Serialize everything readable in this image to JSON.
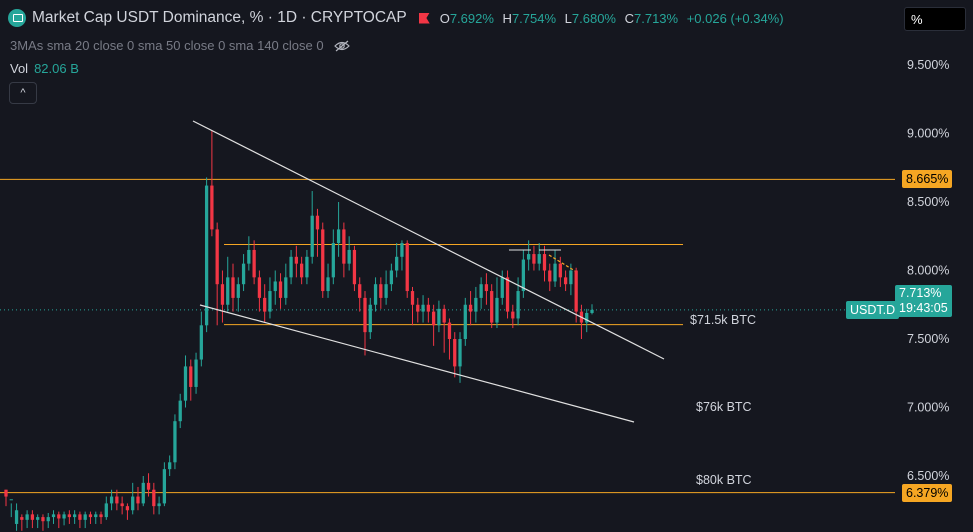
{
  "header": {
    "title": "Market Cap USDT Dominance, % · 1D · CRYPTOCAP",
    "ohlc": {
      "o_label": "O",
      "o_value": "7.692%",
      "h_label": "H",
      "h_value": "7.754%",
      "l_label": "L",
      "l_value": "7.680%",
      "c_label": "C",
      "c_value": "7.713%",
      "change": "+0.026 (+0.34%)"
    }
  },
  "indicator": {
    "label": "3MAs sma 20 close 0 sma 50 close 0 sma 140 close 0"
  },
  "volume": {
    "label": "Vol",
    "value": "82.06 B"
  },
  "unit_button": "%",
  "collapse_icon": "^",
  "colors": {
    "bg": "#15171f",
    "up": "#26a69a",
    "down": "#f23645",
    "level": "#f5a623",
    "trendline": "#e0e0e0"
  },
  "chart_data": {
    "type": "candlestick",
    "ylim": [
      6.2,
      9.85
    ],
    "y_ticks": [
      "9.500%",
      "9.000%",
      "8.500%",
      "8.000%",
      "7.500%",
      "7.000%",
      "6.500%"
    ],
    "y_tick_values": [
      9.5,
      9.0,
      8.5,
      8.0,
      7.5,
      7.0,
      6.5
    ],
    "horizontal_levels": [
      {
        "value": 8.665,
        "label": "8.665%"
      },
      {
        "value": 6.379,
        "label": "6.379%"
      }
    ],
    "range_lines": [
      8.19,
      7.605
    ],
    "current": {
      "symbol": "USDT.D",
      "value": "7.713%",
      "countdown": "19:43:05"
    },
    "annotations": [
      "$71.5k BTC",
      "$76k BTC",
      "$80k BTC"
    ],
    "candles": [
      [
        6.4,
        6.35,
        6.4,
        6.28
      ],
      [
        6.33,
        6.33,
        6.3,
        6.2
      ],
      [
        6.15,
        6.25,
        6.3,
        6.1
      ],
      [
        6.2,
        6.18,
        6.22,
        6.1
      ],
      [
        6.18,
        6.22,
        6.25,
        6.12
      ],
      [
        6.22,
        6.18,
        6.25,
        6.12
      ],
      [
        6.18,
        6.2,
        6.22,
        6.12
      ],
      [
        6.2,
        6.17,
        6.22,
        6.1
      ],
      [
        6.17,
        6.2,
        6.23,
        6.12
      ],
      [
        6.2,
        6.22,
        6.25,
        6.15
      ],
      [
        6.22,
        6.19,
        6.24,
        6.12
      ],
      [
        6.19,
        6.22,
        6.24,
        6.14
      ],
      [
        6.22,
        6.2,
        6.25,
        6.15
      ],
      [
        6.2,
        6.22,
        6.25,
        6.15
      ],
      [
        6.22,
        6.18,
        6.24,
        6.12
      ],
      [
        6.18,
        6.22,
        6.24,
        6.12
      ],
      [
        6.22,
        6.2,
        6.24,
        6.15
      ],
      [
        6.2,
        6.22,
        6.24,
        6.15
      ],
      [
        6.22,
        6.2,
        6.24,
        6.15
      ],
      [
        6.2,
        6.3,
        6.35,
        6.18
      ],
      [
        6.3,
        6.35,
        6.4,
        6.25
      ],
      [
        6.35,
        6.3,
        6.4,
        6.25
      ],
      [
        6.3,
        6.28,
        6.35,
        6.22
      ],
      [
        6.28,
        6.25,
        6.3,
        6.18
      ],
      [
        6.25,
        6.35,
        6.45,
        6.22
      ],
      [
        6.35,
        6.3,
        6.42,
        6.25
      ],
      [
        6.3,
        6.45,
        6.5,
        6.28
      ],
      [
        6.45,
        6.4,
        6.52,
        6.35
      ],
      [
        6.4,
        6.28,
        6.45,
        6.22
      ],
      [
        6.28,
        6.3,
        6.35,
        6.22
      ],
      [
        6.3,
        6.55,
        6.6,
        6.28
      ],
      [
        6.55,
        6.6,
        6.65,
        6.5
      ],
      [
        6.6,
        6.9,
        6.95,
        6.55
      ],
      [
        6.9,
        7.05,
        7.1,
        6.85
      ],
      [
        7.05,
        7.3,
        7.38,
        7.0
      ],
      [
        7.3,
        7.15,
        7.35,
        7.05
      ],
      [
        7.15,
        7.35,
        7.4,
        7.1
      ],
      [
        7.35,
        7.6,
        7.7,
        7.3
      ],
      [
        7.6,
        8.62,
        8.68,
        7.55
      ],
      [
        8.62,
        8.3,
        9.02,
        8.25
      ],
      [
        8.3,
        7.9,
        8.35,
        7.6
      ],
      [
        7.9,
        7.75,
        8.0,
        7.62
      ],
      [
        7.75,
        7.95,
        8.1,
        7.7
      ],
      [
        7.95,
        7.8,
        8.05,
        7.7
      ],
      [
        7.8,
        7.9,
        7.95,
        7.7
      ],
      [
        7.9,
        8.05,
        8.12,
        7.85
      ],
      [
        8.05,
        8.15,
        8.25,
        8.0
      ],
      [
        8.15,
        7.95,
        8.22,
        7.9
      ],
      [
        7.95,
        7.8,
        8.0,
        7.7
      ],
      [
        7.8,
        7.7,
        7.9,
        7.62
      ],
      [
        7.7,
        7.85,
        7.95,
        7.65
      ],
      [
        7.85,
        7.92,
        8.0,
        7.75
      ],
      [
        7.92,
        7.8,
        7.98,
        7.72
      ],
      [
        7.8,
        7.95,
        8.05,
        7.75
      ],
      [
        7.95,
        8.1,
        8.15,
        7.9
      ],
      [
        8.1,
        8.05,
        8.18,
        7.95
      ],
      [
        8.05,
        7.95,
        8.1,
        7.9
      ],
      [
        7.95,
        8.1,
        8.15,
        7.9
      ],
      [
        8.1,
        8.4,
        8.58,
        8.05
      ],
      [
        8.4,
        8.3,
        8.45,
        8.1
      ],
      [
        8.3,
        7.85,
        8.35,
        7.8
      ],
      [
        7.85,
        7.95,
        8.05,
        7.8
      ],
      [
        7.95,
        8.2,
        8.3,
        7.9
      ],
      [
        8.2,
        8.3,
        8.5,
        8.1
      ],
      [
        8.3,
        8.05,
        8.35,
        7.95
      ],
      [
        8.05,
        8.15,
        8.25,
        8.0
      ],
      [
        8.15,
        7.9,
        8.18,
        7.85
      ],
      [
        7.9,
        7.8,
        7.95,
        7.7
      ],
      [
        7.8,
        7.55,
        7.85,
        7.38
      ],
      [
        7.55,
        7.75,
        7.8,
        7.5
      ],
      [
        7.75,
        7.9,
        7.95,
        7.7
      ],
      [
        7.9,
        7.8,
        7.95,
        7.72
      ],
      [
        7.8,
        7.9,
        8.0,
        7.75
      ],
      [
        7.9,
        8.0,
        8.05,
        7.85
      ],
      [
        8.0,
        8.1,
        8.2,
        7.95
      ],
      [
        8.1,
        8.2,
        8.22,
        8.0
      ],
      [
        8.2,
        7.85,
        8.22,
        7.8
      ],
      [
        7.85,
        7.75,
        7.88,
        7.6
      ],
      [
        7.75,
        7.7,
        7.8,
        7.62
      ],
      [
        7.7,
        7.75,
        7.82,
        7.62
      ],
      [
        7.75,
        7.7,
        7.8,
        7.62
      ],
      [
        7.7,
        7.6,
        7.75,
        7.45
      ],
      [
        7.6,
        7.72,
        7.78,
        7.55
      ],
      [
        7.72,
        7.62,
        7.75,
        7.4
      ],
      [
        7.62,
        7.5,
        7.65,
        7.35
      ],
      [
        7.5,
        7.3,
        7.55,
        7.22
      ],
      [
        7.3,
        7.5,
        7.55,
        7.18
      ],
      [
        7.5,
        7.75,
        7.8,
        7.45
      ],
      [
        7.75,
        7.7,
        7.85,
        7.6
      ],
      [
        7.7,
        7.8,
        7.88,
        7.62
      ],
      [
        7.8,
        7.9,
        7.95,
        7.72
      ],
      [
        7.9,
        7.85,
        7.98,
        7.75
      ],
      [
        7.85,
        7.62,
        7.9,
        7.58
      ],
      [
        7.62,
        7.8,
        7.95,
        7.58
      ],
      [
        7.8,
        7.95,
        8.0,
        7.75
      ],
      [
        7.95,
        7.7,
        8.0,
        7.65
      ],
      [
        7.7,
        7.65,
        7.75,
        7.58
      ],
      [
        7.65,
        7.85,
        7.95,
        7.6
      ],
      [
        7.85,
        8.08,
        8.15,
        7.8
      ],
      [
        8.08,
        8.12,
        8.22,
        8.0
      ],
      [
        8.12,
        8.05,
        8.18,
        8.0
      ],
      [
        8.05,
        8.12,
        8.2,
        8.0
      ],
      [
        8.12,
        8.0,
        8.18,
        7.92
      ],
      [
        8.0,
        7.92,
        8.05,
        7.85
      ],
      [
        7.92,
        8.05,
        8.15,
        7.88
      ],
      [
        8.05,
        7.95,
        8.1,
        7.88
      ],
      [
        7.95,
        7.9,
        8.0,
        7.85
      ],
      [
        7.9,
        8.0,
        8.05,
        7.82
      ],
      [
        8.0,
        7.7,
        8.02,
        7.62
      ],
      [
        7.7,
        7.62,
        7.75,
        7.5
      ],
      [
        7.62,
        7.69,
        7.72,
        7.55
      ],
      [
        7.69,
        7.713,
        7.754,
        7.68
      ]
    ]
  }
}
